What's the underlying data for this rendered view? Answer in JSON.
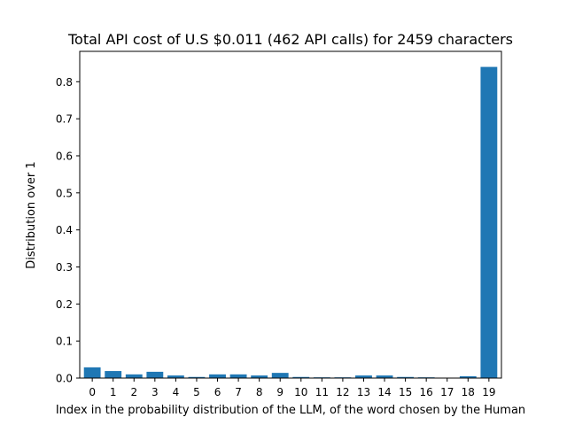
{
  "chart_data": {
    "type": "bar",
    "title": "Total API cost of U.S $0.011 (462 API calls) for 2459 characters",
    "xlabel": "Index in the probability distribution of the LLM, of the word chosen by the Human",
    "ylabel": "Distribution over 1",
    "categories": [
      "0",
      "1",
      "2",
      "3",
      "4",
      "5",
      "6",
      "7",
      "8",
      "9",
      "10",
      "11",
      "12",
      "13",
      "14",
      "15",
      "16",
      "17",
      "18",
      "19"
    ],
    "values": [
      0.029,
      0.019,
      0.01,
      0.017,
      0.007,
      0.003,
      0.01,
      0.01,
      0.007,
      0.014,
      0.003,
      0.002,
      0.002,
      0.007,
      0.007,
      0.003,
      0.002,
      0.0,
      0.005,
      0.84
    ],
    "ylim": [
      0,
      0.882
    ],
    "yticks": [
      0.0,
      0.1,
      0.2,
      0.3,
      0.4,
      0.5,
      0.6,
      0.7,
      0.8
    ],
    "ytick_labels": [
      "0.0",
      "0.1",
      "0.2",
      "0.3",
      "0.4",
      "0.5",
      "0.6",
      "0.7",
      "0.8"
    ],
    "bar_color": "#1f77b4",
    "grid": false
  }
}
